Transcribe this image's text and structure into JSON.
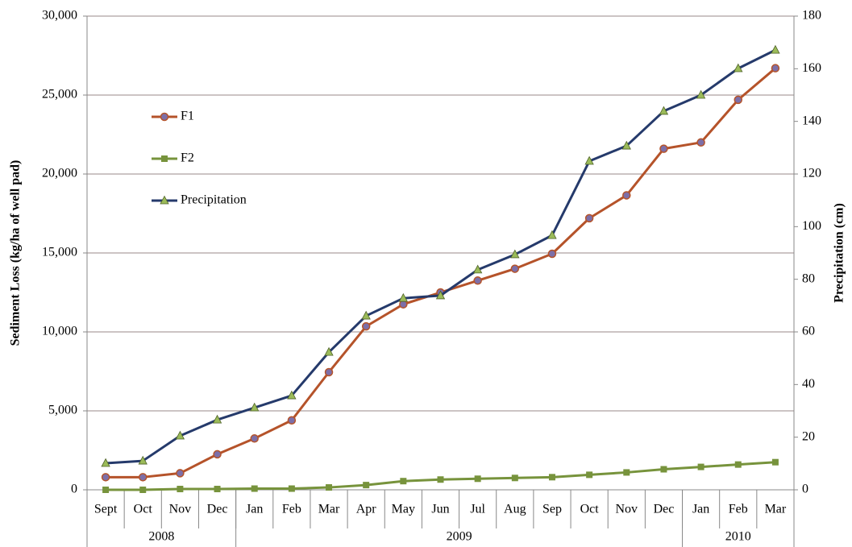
{
  "chart_data": {
    "type": "line",
    "categories": [
      "Sept",
      "Oct",
      "Nov",
      "Dec",
      "Jan",
      "Feb",
      "Mar",
      "Apr",
      "May",
      "Jun",
      "Jul",
      "Aug",
      "Sep",
      "Oct",
      "Nov",
      "Dec",
      "Jan",
      "Feb",
      "Mar"
    ],
    "x_groups": [
      {
        "label": "2008",
        "count": 4
      },
      {
        "label": "2009",
        "count": 12
      },
      {
        "label": "2010",
        "count": 3
      }
    ],
    "y_label": "Sediment Loss (kg/ha of well pad)",
    "y2_label": "Precipitation (cm)",
    "ylim": [
      0,
      30000
    ],
    "yticks": [
      0,
      {
        "value": 5000,
        "label": "5,000"
      },
      {
        "value": 10000,
        "label": "10,000"
      },
      {
        "value": 15000,
        "label": "15,000"
      },
      {
        "value": 20000,
        "label": "20,000"
      },
      {
        "value": 25000,
        "label": "25,000"
      },
      {
        "value": 30000,
        "label": "30,000"
      }
    ],
    "y2lim": [
      0,
      180
    ],
    "y2ticks": [
      0,
      20,
      40,
      60,
      80,
      100,
      120,
      140,
      160,
      180
    ],
    "grid": true,
    "legend": "upper left",
    "series": [
      {
        "name": "F1",
        "color": "#b5532a",
        "marker": "circle",
        "marker_color": "#7d6fa8",
        "values": [
          800,
          800,
          1050,
          2250,
          3250,
          4400,
          7450,
          10350,
          11750,
          12500,
          13250,
          14000,
          14950,
          17200,
          18650,
          21600,
          22000,
          24700,
          26700
        ]
      },
      {
        "name": "F2",
        "color": "#77933c",
        "marker": "square",
        "marker_color": "#77933c",
        "values": [
          0,
          0,
          50,
          50,
          75,
          75,
          150,
          300,
          550,
          650,
          700,
          750,
          800,
          950,
          1100,
          1300,
          1450,
          1600,
          1750
        ]
      },
      {
        "name": "Precipitation",
        "color": "#253a6b",
        "marker": "triangle",
        "marker_color": "#9bbb59",
        "axis": "y2",
        "values": [
          10.1,
          11,
          20.5,
          26.6,
          31.2,
          35.8,
          52.3,
          66.1,
          72.8,
          73.8,
          83.6,
          89.4,
          96.7,
          124.9,
          130.7,
          143.9,
          150,
          160.1,
          167.1
        ]
      }
    ]
  }
}
